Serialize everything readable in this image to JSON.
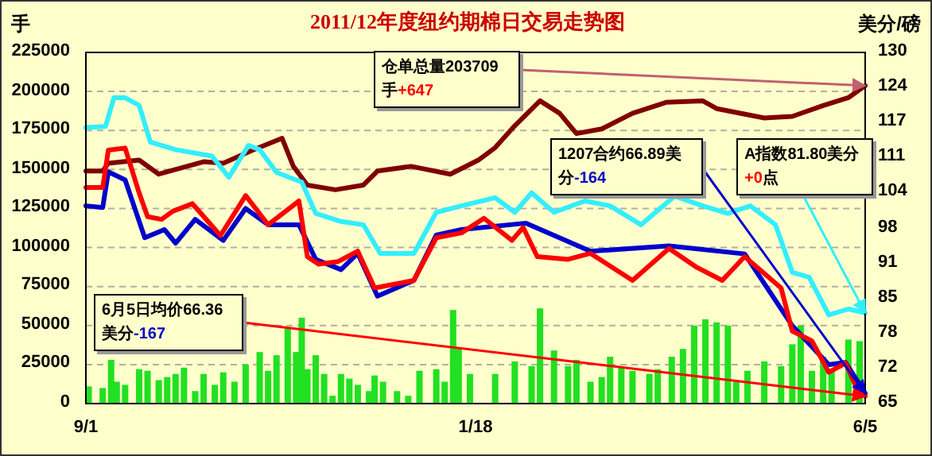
{
  "chart_data": {
    "type": "line",
    "title": "2011/12年度纽约期棉日交易走势图",
    "ylabel": "手",
    "y2label": "美分/磅",
    "xlim": [
      "2011-09-01",
      "2012-06-05"
    ],
    "xticks": [
      {
        "value": "2011-09-01",
        "label": "9/1"
      },
      {
        "value": "2012-01-18",
        "label": "1/18"
      },
      {
        "value": "2012-06-05",
        "label": "6/5"
      }
    ],
    "ylim": [
      0,
      225000
    ],
    "yticks": [
      0,
      25000,
      50000,
      75000,
      100000,
      125000,
      150000,
      175000,
      200000,
      225000
    ],
    "y2lim": [
      65,
      130
    ],
    "y2ticks": [
      65,
      {
        "value": 71.5,
        "label": "72"
      },
      78,
      {
        "value": 84.5,
        "label": "85"
      },
      91,
      {
        "value": 97.5,
        "label": "98"
      },
      104,
      {
        "value": 110.5,
        "label": "111"
      },
      117,
      {
        "value": 123.5,
        "label": "124"
      },
      130
    ],
    "grid": "y",
    "series": [
      {
        "type": "bar",
        "axis": "y",
        "color": "#22e022",
        "x": [
          "2011-09-02",
          "2011-09-07",
          "2011-09-10",
          "2011-09-12",
          "2011-09-15",
          "2011-09-20",
          "2011-09-23",
          "2011-09-27",
          "2011-09-30",
          "2011-10-03",
          "2011-10-06",
          "2011-10-10",
          "2011-10-13",
          "2011-10-17",
          "2011-10-20",
          "2011-10-24",
          "2011-10-28",
          "2011-11-02",
          "2011-11-05",
          "2011-11-08",
          "2011-11-12",
          "2011-11-15",
          "2011-11-17",
          "2011-11-19",
          "2011-11-22",
          "2011-11-25",
          "2011-11-28",
          "2011-12-01",
          "2011-12-04",
          "2011-12-07",
          "2011-12-11",
          "2011-12-13",
          "2011-12-16",
          "2011-12-21",
          "2011-12-25",
          "2011-12-29",
          "2012-01-04",
          "2012-01-07",
          "2012-01-10",
          "2012-01-12",
          "2012-01-16",
          "2012-01-25",
          "2012-02-01",
          "2012-02-07",
          "2012-02-10",
          "2012-02-15",
          "2012-02-20",
          "2012-02-23",
          "2012-02-28",
          "2012-03-03",
          "2012-03-06",
          "2012-03-10",
          "2012-03-14",
          "2012-03-20",
          "2012-03-23",
          "2012-03-28",
          "2012-04-01",
          "2012-04-05",
          "2012-04-09",
          "2012-04-13",
          "2012-04-17",
          "2012-04-20",
          "2012-04-24",
          "2012-04-30",
          "2012-05-06",
          "2012-05-10",
          "2012-05-13",
          "2012-05-17",
          "2012-05-21",
          "2012-05-24",
          "2012-05-30",
          "2012-06-03"
        ],
        "values": [
          11000,
          10000,
          28000,
          14000,
          12000,
          22000,
          21000,
          15000,
          17000,
          19000,
          23000,
          8000,
          19000,
          12000,
          20000,
          14000,
          25000,
          33000,
          21000,
          31000,
          48000,
          33000,
          55000,
          22000,
          31000,
          19000,
          5000,
          19000,
          16000,
          12000,
          8000,
          18000,
          14000,
          8000,
          5000,
          21000,
          22000,
          14000,
          60000,
          35000,
          19000,
          19000,
          27000,
          24000,
          61000,
          34000,
          24000,
          28000,
          14000,
          17000,
          30000,
          24000,
          21000,
          19000,
          22000,
          30000,
          35000,
          50000,
          54000,
          52000,
          50000,
          14000,
          21000,
          27000,
          24000,
          38000,
          50000,
          21000,
          30000,
          21000,
          41000,
          40000
        ]
      },
      {
        "axis": "y",
        "color": "#800000",
        "x": [
          "2011-09-01",
          "2011-09-07",
          "2011-09-09",
          "2011-09-20",
          "2011-09-27",
          "2011-10-13",
          "2011-10-20",
          "2011-10-30",
          "2011-11-10",
          "2011-11-14",
          "2011-11-19",
          "2011-11-29",
          "2011-12-09",
          "2011-12-14",
          "2011-12-26",
          "2012-01-09",
          "2012-01-19",
          "2012-01-25",
          "2012-02-01",
          "2012-02-10",
          "2012-02-17",
          "2012-02-23",
          "2012-03-03",
          "2012-03-14",
          "2012-03-26",
          "2012-04-08",
          "2012-04-13",
          "2012-04-30",
          "2012-05-10",
          "2012-05-21",
          "2012-05-30",
          "2012-06-05"
        ],
        "values": [
          149000,
          149000,
          154000,
          156000,
          147000,
          155000,
          154000,
          162000,
          170000,
          152000,
          140000,
          137000,
          140000,
          149000,
          152000,
          147000,
          156000,
          164000,
          178000,
          194000,
          186000,
          173000,
          176000,
          186000,
          193000,
          194000,
          189000,
          183000,
          184000,
          191000,
          196000,
          203709
        ]
      },
      {
        "axis": "y2",
        "color": "#33eeff",
        "x": [
          "2011-09-01",
          "2011-09-08",
          "2011-09-11",
          "2011-09-15",
          "2011-09-20",
          "2011-09-24",
          "2011-10-03",
          "2011-10-16",
          "2011-10-22",
          "2011-10-29",
          "2011-11-02",
          "2011-11-08",
          "2011-11-17",
          "2011-11-22",
          "2011-12-01",
          "2011-12-09",
          "2011-12-15",
          "2011-12-27",
          "2012-01-04",
          "2012-01-13",
          "2012-01-25",
          "2012-02-01",
          "2012-02-07",
          "2012-02-15",
          "2012-02-26",
          "2012-03-06",
          "2012-03-17",
          "2012-03-29",
          "2012-04-08",
          "2012-04-17",
          "2012-04-25",
          "2012-05-04",
          "2012-05-10",
          "2012-05-16",
          "2012-05-23",
          "2012-05-30",
          "2012-06-05"
        ],
        "values": [
          116.1,
          116.3,
          121.6,
          121.6,
          120.2,
          113.4,
          112.0,
          110.8,
          106.9,
          112.8,
          112.0,
          107.8,
          106.0,
          100.2,
          98.7,
          98.1,
          92.8,
          92.8,
          100.4,
          101.6,
          103.1,
          100.4,
          104.0,
          100.4,
          102.5,
          101.6,
          98.1,
          103.4,
          101.6,
          100.2,
          101.6,
          98.1,
          89.3,
          88.4,
          81.4,
          82.5,
          81.8
        ]
      },
      {
        "axis": "y2",
        "color": "#0000cc",
        "x": [
          "2011-09-01",
          "2011-09-07",
          "2011-09-09",
          "2011-09-15",
          "2011-09-22",
          "2011-09-29",
          "2011-10-03",
          "2011-10-10",
          "2011-10-20",
          "2011-10-28",
          "2011-11-05",
          "2011-11-16",
          "2011-11-22",
          "2011-12-01",
          "2011-12-07",
          "2011-12-14",
          "2011-12-27",
          "2012-01-04",
          "2012-01-13",
          "2012-02-05",
          "2012-02-28",
          "2012-03-27",
          "2012-04-23",
          "2012-05-10",
          "2012-05-23",
          "2012-05-29",
          "2012-06-05"
        ],
        "values": [
          101.6,
          101.3,
          107.9,
          106.4,
          95.7,
          97.2,
          94.7,
          99.1,
          95.2,
          101.1,
          98.1,
          98.1,
          91.7,
          89.8,
          92.8,
          84.9,
          87.8,
          96.2,
          97.2,
          98.4,
          93.2,
          94.2,
          92.7,
          79.4,
          72.2,
          72.6,
          66.89
        ]
      },
      {
        "axis": "y2",
        "color": "#ff0000",
        "x": [
          "2011-09-01",
          "2011-09-07",
          "2011-09-09",
          "2011-09-15",
          "2011-09-20",
          "2011-09-23",
          "2011-09-28",
          "2011-10-02",
          "2011-10-09",
          "2011-10-19",
          "2011-10-28",
          "2011-11-05",
          "2011-11-16",
          "2011-11-19",
          "2011-11-23",
          "2011-11-30",
          "2011-12-07",
          "2011-12-13",
          "2011-12-27",
          "2012-01-04",
          "2012-01-13",
          "2012-01-21",
          "2012-01-31",
          "2012-02-04",
          "2012-02-09",
          "2012-02-20",
          "2012-02-28",
          "2012-03-14",
          "2012-03-27",
          "2012-04-06",
          "2012-04-15",
          "2012-04-23",
          "2012-05-06",
          "2012-05-10",
          "2012-05-17",
          "2012-05-23",
          "2012-05-29",
          "2012-06-02",
          "2012-06-05"
        ],
        "values": [
          105.0,
          105.0,
          111.9,
          112.3,
          104.0,
          99.6,
          99.1,
          100.6,
          102.0,
          96.1,
          103.5,
          98.1,
          102.5,
          92.2,
          90.8,
          91.3,
          93.2,
          86.4,
          87.8,
          95.7,
          96.6,
          99.3,
          95.2,
          97.6,
          92.2,
          91.7,
          92.8,
          87.8,
          93.7,
          90.2,
          87.8,
          92.2,
          86.4,
          78.4,
          76.6,
          70.8,
          72.5,
          67.8,
          66.36
        ]
      }
    ],
    "annotations": [
      "仓单总量203709手+647",
      "A指数81.80美分+0点",
      {
        "text": "1207合约66.89美分-164",
        "x": "2012-06-05",
        "y": 66.89
      },
      {
        "text": "6月5日均价66.36美分-167",
        "x": "2012-06-05",
        "y": 66.36
      }
    ]
  }
}
